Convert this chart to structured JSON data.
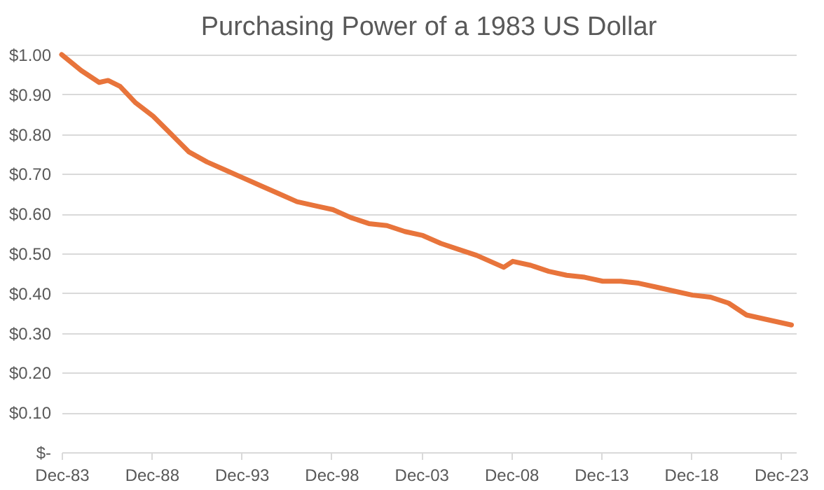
{
  "chart_data": {
    "type": "line",
    "title": "Purchasing Power of a 1983 US Dollar",
    "x": [
      "1983-12",
      "1985-01",
      "1986-01",
      "1986-07",
      "1987-03",
      "1988-01",
      "1989-01",
      "1990-01",
      "1991-01",
      "1992-01",
      "1993-01",
      "1994-01",
      "1995-01",
      "1996-01",
      "1997-01",
      "1998-01",
      "1999-01",
      "2000-01",
      "2001-01",
      "2002-01",
      "2003-01",
      "2004-01",
      "2005-01",
      "2006-01",
      "2007-01",
      "2008-07",
      "2009-01",
      "2010-01",
      "2011-01",
      "2012-01",
      "2013-01",
      "2014-01",
      "2015-01",
      "2016-01",
      "2017-01",
      "2018-01",
      "2019-01",
      "2020-01",
      "2021-01",
      "2022-01",
      "2023-01",
      "2024-07"
    ],
    "series": [
      {
        "color": "#e8743b",
        "values": [
          1.0,
          0.96,
          0.93,
          0.935,
          0.92,
          0.88,
          0.845,
          0.8,
          0.755,
          0.73,
          0.71,
          0.69,
          0.67,
          0.65,
          0.63,
          0.62,
          0.61,
          0.59,
          0.575,
          0.57,
          0.555,
          0.545,
          0.525,
          0.51,
          0.495,
          0.465,
          0.48,
          0.47,
          0.455,
          0.445,
          0.44,
          0.43,
          0.43,
          0.425,
          0.415,
          0.405,
          0.395,
          0.39,
          0.375,
          0.345,
          0.335,
          0.32
        ]
      }
    ],
    "xlim": [
      "1983-12",
      "2024-10"
    ],
    "xticks": [
      {
        "value": "1983-12",
        "label": "Dec-83"
      },
      {
        "value": "1988-12",
        "label": "Dec-88"
      },
      {
        "value": "1993-12",
        "label": "Dec-93"
      },
      {
        "value": "1998-12",
        "label": "Dec-98"
      },
      {
        "value": "2003-12",
        "label": "Dec-03"
      },
      {
        "value": "2008-12",
        "label": "Dec-08"
      },
      {
        "value": "2013-12",
        "label": "Dec-13"
      },
      {
        "value": "2018-12",
        "label": "Dec-18"
      },
      {
        "value": "2023-12",
        "label": "Dec-23"
      }
    ],
    "ylim": [
      0,
      1.0
    ],
    "yticks": [
      {
        "value": 0,
        "label": "$-"
      },
      {
        "value": 0.1,
        "label": "$0.10"
      },
      {
        "value": 0.2,
        "label": "$0.20"
      },
      {
        "value": 0.3,
        "label": "$0.30"
      },
      {
        "value": 0.4,
        "label": "$0.40"
      },
      {
        "value": 0.5,
        "label": "$0.50"
      },
      {
        "value": 0.6,
        "label": "$0.60"
      },
      {
        "value": 0.7,
        "label": "$0.70"
      },
      {
        "value": 0.8,
        "label": "$0.80"
      },
      {
        "value": 0.9,
        "label": "$0.90"
      },
      {
        "value": 1.0,
        "label": "$1.00"
      }
    ],
    "grid": "y",
    "marker": "none",
    "line_style": "solid"
  }
}
